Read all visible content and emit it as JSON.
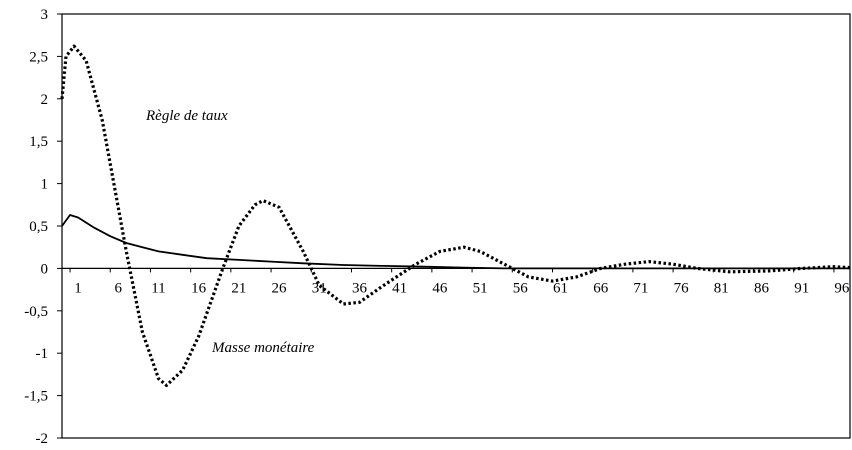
{
  "chart_data": {
    "type": "line",
    "title": "",
    "xlabel": "",
    "ylabel": "",
    "ylim": [
      -2,
      3
    ],
    "y_ticks": [
      "-2",
      "-1,5",
      "-1",
      "-0,5",
      "0",
      "0,5",
      "1",
      "1,5",
      "2",
      "2,5",
      "3"
    ],
    "x_ticks": [
      "1",
      "6",
      "11",
      "16",
      "21",
      "26",
      "31",
      "36",
      "41",
      "46",
      "51",
      "56",
      "61",
      "66",
      "71",
      "76",
      "81",
      "86",
      "91",
      "96"
    ],
    "grid": false,
    "legend": "none",
    "annotations": [
      "Règle de taux",
      "Masse monétaire"
    ],
    "series": [
      {
        "style": "dotted",
        "color": "#000000",
        "points": [
          [
            0,
            2.0
          ],
          [
            0.5,
            2.5
          ],
          [
            1.5,
            2.62
          ],
          [
            3,
            2.45
          ],
          [
            5,
            1.75
          ],
          [
            8,
            0.2
          ],
          [
            10,
            -0.75
          ],
          [
            12,
            -1.3
          ],
          [
            13,
            -1.38
          ],
          [
            15,
            -1.2
          ],
          [
            17,
            -0.8
          ],
          [
            20,
            0.0
          ],
          [
            22,
            0.5
          ],
          [
            24,
            0.75
          ],
          [
            25,
            0.8
          ],
          [
            27,
            0.72
          ],
          [
            30,
            0.2
          ],
          [
            32,
            -0.2
          ],
          [
            35,
            -0.42
          ],
          [
            37,
            -0.4
          ],
          [
            40,
            -0.2
          ],
          [
            44,
            0.05
          ],
          [
            47,
            0.2
          ],
          [
            50,
            0.25
          ],
          [
            52,
            0.2
          ],
          [
            56,
            0.0
          ],
          [
            58,
            -0.1
          ],
          [
            61,
            -0.15
          ],
          [
            64,
            -0.1
          ],
          [
            67,
            0.0
          ],
          [
            70,
            0.05
          ],
          [
            73,
            0.08
          ],
          [
            76,
            0.05
          ],
          [
            79,
            0.0
          ],
          [
            83,
            -0.04
          ],
          [
            88,
            -0.03
          ],
          [
            92,
            0.0
          ],
          [
            96,
            0.02
          ],
          [
            98,
            0.01
          ]
        ]
      },
      {
        "style": "solid",
        "color": "#000000",
        "points": [
          [
            0,
            0.5
          ],
          [
            1,
            0.63
          ],
          [
            2,
            0.6
          ],
          [
            4,
            0.48
          ],
          [
            6,
            0.38
          ],
          [
            8,
            0.3
          ],
          [
            10,
            0.25
          ],
          [
            12,
            0.2
          ],
          [
            15,
            0.16
          ],
          [
            18,
            0.12
          ],
          [
            22,
            0.1
          ],
          [
            26,
            0.08
          ],
          [
            30,
            0.06
          ],
          [
            35,
            0.04
          ],
          [
            40,
            0.03
          ],
          [
            45,
            0.02
          ],
          [
            50,
            0.01
          ],
          [
            55,
            0.0
          ],
          [
            98,
            0.0
          ]
        ]
      }
    ]
  }
}
